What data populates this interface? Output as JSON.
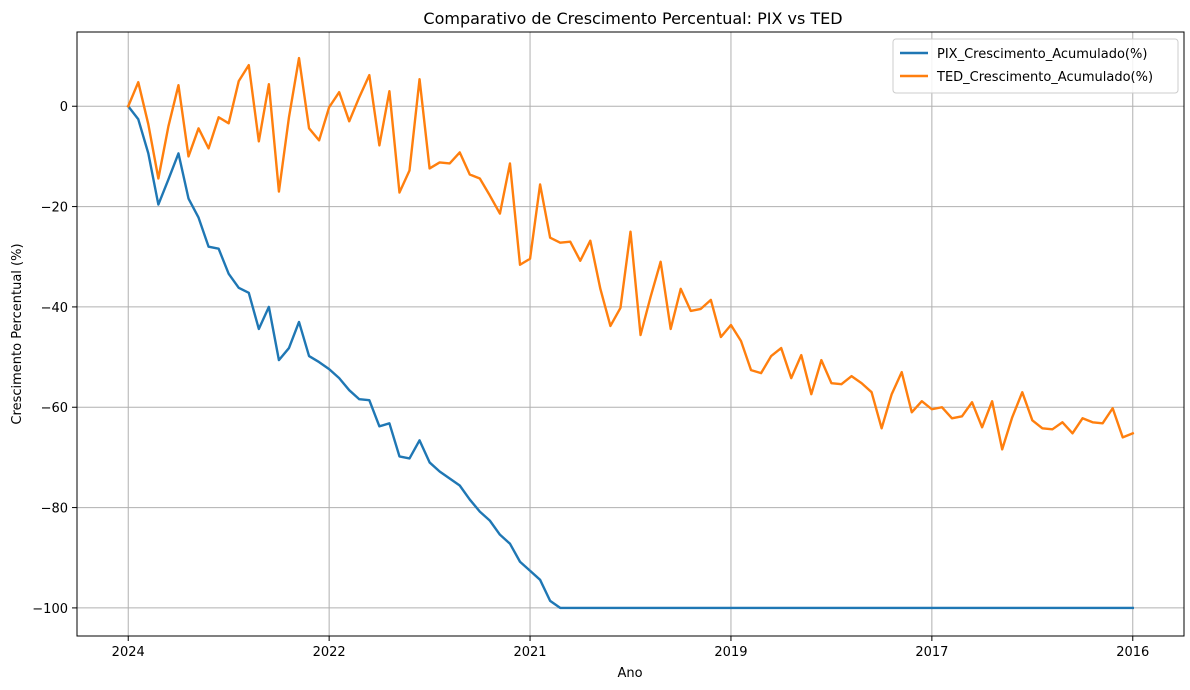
{
  "chart_data": {
    "type": "line",
    "title": "Comparativo de Crescimento Percentual: PIX vs TED",
    "xlabel": "Ano",
    "ylabel": "Crescimento Percentual (%)",
    "x_tick_labels": [
      "2024",
      "2022",
      "2021",
      "2019",
      "2017",
      "2016"
    ],
    "x_tick_index": [
      0,
      20,
      40,
      60,
      80,
      100
    ],
    "y_ticks": [
      0,
      -20,
      -40,
      -60,
      -80,
      -100
    ],
    "ylim": [
      -105.6,
      14.8
    ],
    "xlim_index": [
      -5.1,
      105.1
    ],
    "grid": true,
    "legend_placement": "top-right",
    "series": [
      {
        "name": "PIX_Crescimento_Acumulado(%)",
        "color": "#1f77b4",
        "values": [
          0,
          -2.6,
          -9.4,
          -19.6,
          -14.6,
          -9.4,
          -18.4,
          -22.2,
          -28.0,
          -28.4,
          -33.4,
          -36.2,
          -37.2,
          -44.4,
          -40.0,
          -50.6,
          -48.2,
          -43.0,
          -49.8,
          -51.0,
          -52.4,
          -54.2,
          -56.6,
          -58.4,
          -58.6,
          -63.8,
          -63.2,
          -69.8,
          -70.2,
          -66.6,
          -71.0,
          -72.8,
          -74.2,
          -75.6,
          -78.4,
          -80.8,
          -82.6,
          -85.4,
          -87.2,
          -90.8,
          -92.6,
          -94.4,
          -98.6,
          -100,
          -100,
          -100,
          -100,
          -100,
          -100,
          -100,
          -100,
          -100,
          -100,
          -100,
          -100,
          -100,
          -100,
          -100,
          -100,
          -100,
          -100,
          -100,
          -100,
          -100,
          -100,
          -100,
          -100,
          -100,
          -100,
          -100,
          -100,
          -100,
          -100,
          -100,
          -100,
          -100,
          -100,
          -100,
          -100,
          -100,
          -100,
          -100,
          -100,
          -100,
          -100,
          -100,
          -100,
          -100,
          -100,
          -100,
          -100,
          -100,
          -100,
          -100,
          -100,
          -100,
          -100,
          -100,
          -100,
          -100,
          -100
        ]
      },
      {
        "name": "TED_Crescimento_Acumulado(%)",
        "color": "#ff7f0e",
        "values": [
          0,
          4.8,
          -3.6,
          -14.4,
          -4.0,
          4.2,
          -10.0,
          -4.4,
          -8.4,
          -2.2,
          -3.4,
          5.0,
          8.2,
          -7.0,
          4.4,
          -17.0,
          -2.2,
          9.6,
          -4.4,
          -6.8,
          -0.2,
          2.8,
          -3.0,
          1.8,
          6.2,
          -7.8,
          3.0,
          -17.2,
          -12.8,
          5.4,
          -12.4,
          -11.2,
          -11.4,
          -9.2,
          -13.6,
          -14.4,
          -17.8,
          -21.4,
          -11.4,
          -31.6,
          -30.4,
          -15.6,
          -26.2,
          -27.2,
          -27.0,
          -30.8,
          -26.8,
          -36.4,
          -43.8,
          -40.2,
          -25.0,
          -45.6,
          -38.0,
          -31.0,
          -44.4,
          -36.4,
          -40.8,
          -40.4,
          -38.6,
          -46.0,
          -43.6,
          -46.8,
          -52.6,
          -53.2,
          -49.8,
          -48.2,
          -54.2,
          -49.6,
          -57.4,
          -50.6,
          -55.2,
          -55.4,
          -53.8,
          -55.2,
          -57.0,
          -64.2,
          -57.4,
          -53.0,
          -61.0,
          -58.8,
          -60.4,
          -60.0,
          -62.2,
          -61.8,
          -59.0,
          -64.0,
          -58.8,
          -68.4,
          -62.0,
          -57.0,
          -62.6,
          -64.2,
          -64.4,
          -63.0,
          -65.2,
          -62.2,
          -63.0,
          -63.2,
          -60.2,
          -66.0,
          -65.2
        ]
      }
    ]
  }
}
